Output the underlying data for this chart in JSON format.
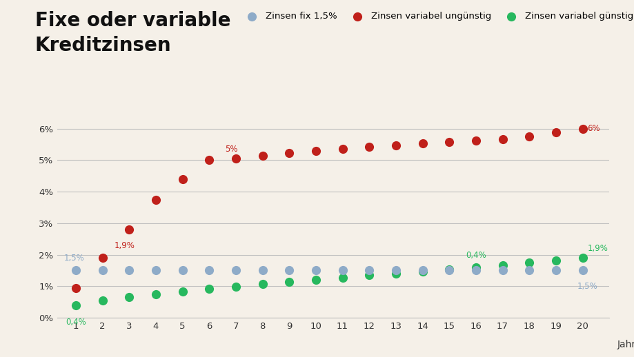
{
  "title": "Fixe oder variable\nKreditzinsen",
  "years": [
    1,
    2,
    3,
    4,
    5,
    6,
    7,
    8,
    9,
    10,
    11,
    12,
    13,
    14,
    15,
    16,
    17,
    18,
    19,
    20
  ],
  "fixed_rate": [
    1.5,
    1.5,
    1.5,
    1.5,
    1.5,
    1.5,
    1.5,
    1.5,
    1.5,
    1.5,
    1.5,
    1.5,
    1.5,
    1.5,
    1.5,
    1.5,
    1.5,
    1.5,
    1.5,
    1.5
  ],
  "variable_bad": [
    0.95,
    1.9,
    2.8,
    3.75,
    4.4,
    5.0,
    5.05,
    5.15,
    5.22,
    5.3,
    5.37,
    5.43,
    5.48,
    5.53,
    5.57,
    5.62,
    5.67,
    5.75,
    5.88,
    6.0
  ],
  "variable_good": [
    0.4,
    0.55,
    0.65,
    0.75,
    0.83,
    0.91,
    0.99,
    1.07,
    1.14,
    1.21,
    1.28,
    1.35,
    1.41,
    1.47,
    1.54,
    1.6,
    1.67,
    1.74,
    1.82,
    1.9
  ],
  "fixed_color": "#8eabc8",
  "bad_color": "#c0201a",
  "good_color": "#27b85e",
  "background_color": "#f5f0e8",
  "grid_color": "#c0c0c0",
  "xlabel": "Jahre",
  "ylim": [
    0,
    6.8
  ],
  "yticks": [
    0,
    1,
    2,
    3,
    4,
    5,
    6
  ],
  "ytick_labels": [
    "0%",
    "1%",
    "2%",
    "3%",
    "4%",
    "5%",
    "6%"
  ],
  "title_fontsize": 20,
  "legend_labels": [
    "Zinsen fix 1,5%",
    "Zinsen variabel ungünstig",
    "Zinsen variabel günstig"
  ],
  "marker_size": 90
}
